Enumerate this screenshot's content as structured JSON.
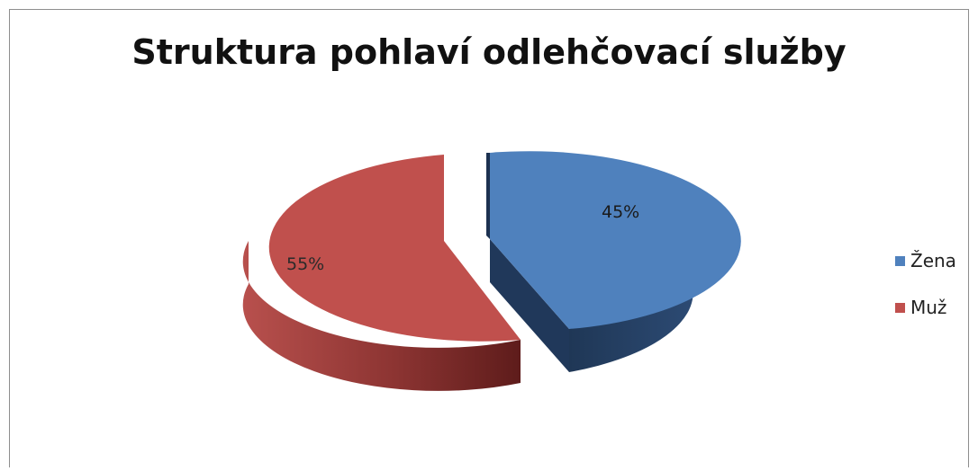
{
  "chart_data": {
    "type": "pie",
    "style": "3d-exploded",
    "title": "Struktura pohlaví odlehčovací služby",
    "slices": [
      {
        "label": "Žena",
        "value": 45,
        "display": "45%",
        "color": "#4f81bd",
        "side_color": "#26405f"
      },
      {
        "label": "Muž",
        "value": 55,
        "display": "55%",
        "color": "#c0504d",
        "side_color": "#7d2b29"
      }
    ],
    "legend": {
      "position": "right"
    }
  }
}
